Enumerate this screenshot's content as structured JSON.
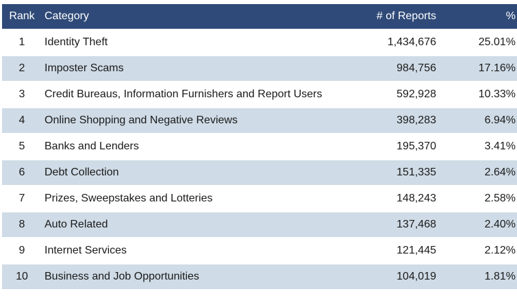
{
  "header": {
    "rank": "Rank",
    "category": "Category",
    "reports": "# of Reports",
    "percent": "%"
  },
  "rows": [
    {
      "rank": "1",
      "category": "Identity Theft",
      "reports": "1,434,676",
      "percent": "25.01%"
    },
    {
      "rank": "2",
      "category": "Imposter Scams",
      "reports": "984,756",
      "percent": "17.16%"
    },
    {
      "rank": "3",
      "category": "Credit Bureaus, Information Furnishers and Report Users",
      "reports": "592,928",
      "percent": "10.33%"
    },
    {
      "rank": "4",
      "category": "Online Shopping and Negative Reviews",
      "reports": "398,283",
      "percent": "6.94%"
    },
    {
      "rank": "5",
      "category": "Banks and Lenders",
      "reports": "195,370",
      "percent": "3.41%"
    },
    {
      "rank": "6",
      "category": "Debt Collection",
      "reports": "151,335",
      "percent": "2.64%"
    },
    {
      "rank": "7",
      "category": "Prizes, Sweepstakes and Lotteries",
      "reports": "148,243",
      "percent": "2.58%"
    },
    {
      "rank": "8",
      "category": "Auto Related",
      "reports": "137,468",
      "percent": "2.40%"
    },
    {
      "rank": "9",
      "category": "Internet Services",
      "reports": "121,445",
      "percent": "2.12%"
    },
    {
      "rank": "10",
      "category": "Business and Job Opportunities",
      "reports": "104,019",
      "percent": "1.81%"
    }
  ],
  "colors": {
    "header_bg": "#2f4a78",
    "header_text": "#ffffff",
    "alt_row_bg": "#cfdbe6",
    "row_bg": "#ffffff"
  }
}
